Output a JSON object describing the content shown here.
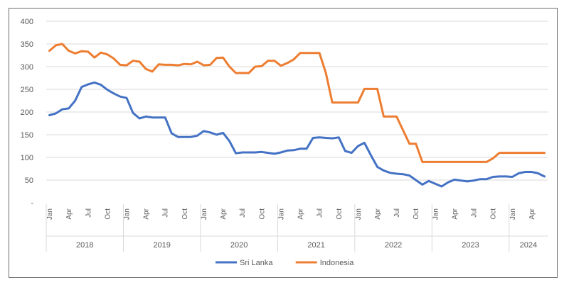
{
  "chart_data": {
    "type": "line",
    "title": "",
    "xlabel": "",
    "ylabel": "",
    "ylim": [
      0,
      400
    ],
    "y_ticks": [
      {
        "value": 0,
        "label": "-"
      },
      {
        "value": 50,
        "label": "50"
      },
      {
        "value": 100,
        "label": "100"
      },
      {
        "value": 150,
        "label": "150"
      },
      {
        "value": 200,
        "label": "200"
      },
      {
        "value": 250,
        "label": "250"
      },
      {
        "value": 300,
        "label": "300"
      },
      {
        "value": 350,
        "label": "350"
      },
      {
        "value": 400,
        "label": "400"
      }
    ],
    "grid": "horizontal",
    "legend_position": "bottom",
    "months": [
      "2018-01",
      "2018-02",
      "2018-03",
      "2018-04",
      "2018-05",
      "2018-06",
      "2018-07",
      "2018-08",
      "2018-09",
      "2018-10",
      "2018-11",
      "2018-12",
      "2019-01",
      "2019-02",
      "2019-03",
      "2019-04",
      "2019-05",
      "2019-06",
      "2019-07",
      "2019-08",
      "2019-09",
      "2019-10",
      "2019-11",
      "2019-12",
      "2020-01",
      "2020-02",
      "2020-03",
      "2020-04",
      "2020-05",
      "2020-06",
      "2020-07",
      "2020-08",
      "2020-09",
      "2020-10",
      "2020-11",
      "2020-12",
      "2021-01",
      "2021-02",
      "2021-03",
      "2021-04",
      "2021-05",
      "2021-06",
      "2021-07",
      "2021-08",
      "2021-09",
      "2021-10",
      "2021-11",
      "2021-12",
      "2022-01",
      "2022-02",
      "2022-03",
      "2022-04",
      "2022-05",
      "2022-06",
      "2022-07",
      "2022-08",
      "2022-09",
      "2022-10",
      "2022-11",
      "2022-12",
      "2023-01",
      "2023-02",
      "2023-03",
      "2023-04",
      "2023-05",
      "2023-06",
      "2023-07",
      "2023-08",
      "2023-09",
      "2023-10",
      "2023-11",
      "2023-12",
      "2024-01",
      "2024-02",
      "2024-03",
      "2024-04",
      "2024-05",
      "2024-06"
    ],
    "month_tick_labels": [
      "Jan",
      "Apr",
      "Jul",
      "Oct"
    ],
    "year_labels": [
      "2018",
      "2019",
      "2020",
      "2021",
      "2022",
      "2023",
      "2024"
    ],
    "series": [
      {
        "name": "Sri Lanka",
        "color": "#4472c4",
        "values": [
          193,
          197,
          206,
          208,
          225,
          255,
          261,
          265,
          260,
          249,
          241,
          234,
          231,
          198,
          186,
          190,
          188,
          188,
          188,
          153,
          145,
          145,
          145,
          148,
          158,
          155,
          150,
          154,
          136,
          109,
          111,
          111,
          111,
          112,
          110,
          108,
          111,
          115,
          116,
          119,
          119,
          143,
          144,
          143,
          142,
          144,
          114,
          110,
          125,
          132,
          105,
          79,
          71,
          66,
          64,
          63,
          60,
          50,
          40,
          48,
          42,
          36,
          45,
          51,
          49,
          47,
          49,
          52,
          52,
          57,
          58,
          58,
          57,
          65,
          68,
          68,
          65,
          58
        ]
      },
      {
        "name": "Indonesia",
        "color": "#ed7d31",
        "values": [
          335,
          347,
          350,
          335,
          329,
          334,
          333,
          320,
          331,
          327,
          318,
          304,
          303,
          313,
          311,
          295,
          289,
          305,
          304,
          304,
          303,
          306,
          305,
          311,
          303,
          304,
          319,
          320,
          300,
          286,
          286,
          286,
          300,
          301,
          313,
          313,
          302,
          308,
          316,
          330,
          330,
          330,
          330,
          286,
          221,
          221,
          221,
          221,
          221,
          251,
          251,
          251,
          190,
          190,
          190,
          160,
          130,
          130,
          90,
          90,
          90,
          90,
          90,
          90,
          90,
          90,
          90,
          90,
          90,
          98,
          110,
          110,
          110,
          110,
          110,
          110,
          110,
          110
        ]
      }
    ]
  }
}
